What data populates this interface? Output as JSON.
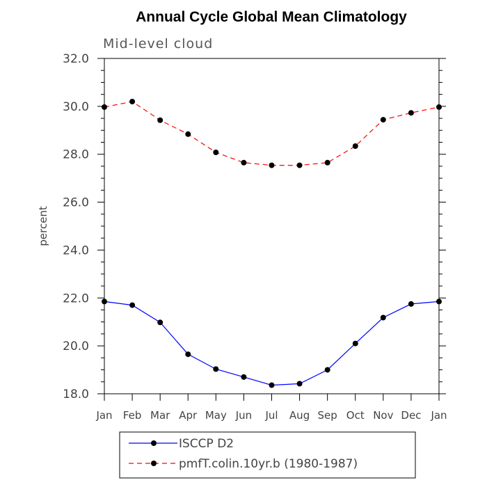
{
  "chart_data": {
    "type": "line",
    "title": "Annual Cycle Global Mean Climatology",
    "subtitle": "Mid-level cloud",
    "xlabel": "",
    "ylabel": "percent",
    "categories": [
      "Jan",
      "Feb",
      "Mar",
      "Apr",
      "May",
      "Jun",
      "Jul",
      "Aug",
      "Sep",
      "Oct",
      "Nov",
      "Dec",
      "Jan"
    ],
    "ylim": [
      18.0,
      32.0
    ],
    "yticks": [
      "18.0",
      "20.0",
      "22.0",
      "24.0",
      "26.0",
      "28.0",
      "30.0",
      "32.0"
    ],
    "grid": false,
    "legend_position": "bottom",
    "series": [
      {
        "name": "ISCCP D2",
        "color": "#0000ff",
        "line_style": "solid",
        "marker": "filled-circle",
        "values": [
          21.85,
          21.7,
          20.98,
          19.65,
          19.03,
          18.7,
          18.36,
          18.42,
          19.0,
          20.1,
          21.18,
          21.75,
          21.85
        ]
      },
      {
        "name": "pmfT.colin.10yr.b (1980-1987)",
        "color": "#ff0000",
        "line_style": "dashed",
        "marker": "filled-circle",
        "values": [
          29.97,
          30.2,
          29.42,
          28.84,
          28.08,
          27.65,
          27.54,
          27.54,
          27.65,
          28.34,
          29.44,
          29.73,
          29.97
        ]
      }
    ]
  }
}
